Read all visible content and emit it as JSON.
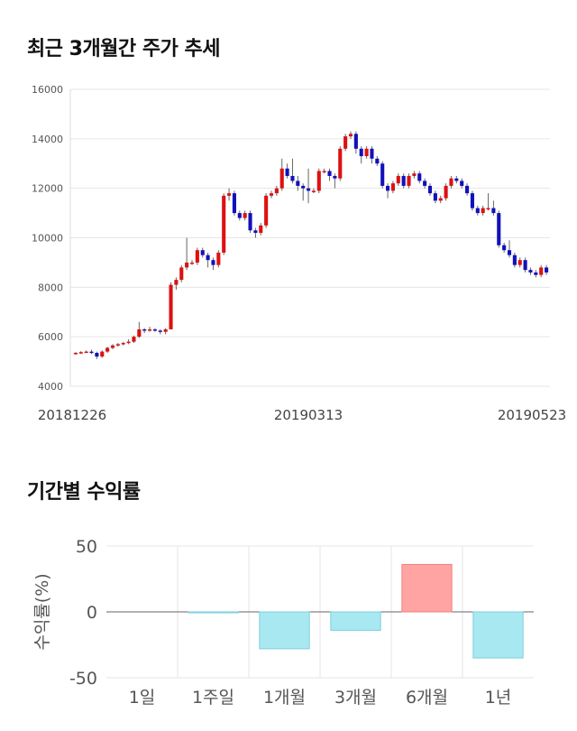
{
  "section1": {
    "title": "최근 3개월간 주가 추세"
  },
  "section2": {
    "title": "기간별 수익률"
  },
  "chart_data": [
    {
      "type": "candlestick",
      "yticks": [
        4000,
        6000,
        8000,
        10000,
        12000,
        14000,
        16000
      ],
      "ylim": [
        4000,
        16000
      ],
      "xtick_labels": [
        "20181226",
        "20190313",
        "20190523"
      ],
      "grid": true,
      "colors": {
        "up": "#dd1111",
        "down": "#1111bb",
        "wick": "#666666"
      },
      "candles": [
        [
          5300,
          5350,
          5380,
          5280
        ],
        [
          5350,
          5380,
          5420,
          5300
        ],
        [
          5380,
          5400,
          5450,
          5350
        ],
        [
          5400,
          5350,
          5480,
          5300
        ],
        [
          5350,
          5200,
          5400,
          5100
        ],
        [
          5200,
          5400,
          5450,
          5150
        ],
        [
          5400,
          5550,
          5600,
          5350
        ],
        [
          5550,
          5650,
          5700,
          5500
        ],
        [
          5650,
          5700,
          5750,
          5600
        ],
        [
          5700,
          5750,
          5800,
          5650
        ],
        [
          5750,
          5800,
          5900,
          5700
        ],
        [
          5800,
          6000,
          6050,
          5750
        ],
        [
          6000,
          6300,
          6600,
          5950
        ],
        [
          6300,
          6250,
          6350,
          6150
        ],
        [
          6250,
          6300,
          6400,
          6200
        ],
        [
          6300,
          6250,
          6350,
          6200
        ],
        [
          6250,
          6200,
          6300,
          6100
        ],
        [
          6200,
          6300,
          6350,
          6100
        ],
        [
          6300,
          8100,
          8200,
          6300
        ],
        [
          8100,
          8300,
          8400,
          7900
        ],
        [
          8300,
          8800,
          8900,
          8200
        ],
        [
          8800,
          9000,
          10000,
          8700
        ],
        [
          9000,
          9000,
          9100,
          8900
        ],
        [
          9000,
          9500,
          9600,
          8900
        ],
        [
          9500,
          9300,
          9600,
          9200
        ],
        [
          9300,
          9100,
          9400,
          8800
        ],
        [
          9100,
          8900,
          9200,
          8700
        ],
        [
          8900,
          9400,
          9500,
          8800
        ],
        [
          9400,
          11700,
          11800,
          9300
        ],
        [
          11700,
          11800,
          12000,
          11500
        ],
        [
          11800,
          11000,
          11900,
          10900
        ],
        [
          11000,
          10800,
          11100,
          10700
        ],
        [
          10800,
          11000,
          11100,
          10700
        ],
        [
          11000,
          10300,
          11100,
          10200
        ],
        [
          10300,
          10200,
          10400,
          10000
        ],
        [
          10200,
          10500,
          10600,
          10100
        ],
        [
          10500,
          11700,
          11800,
          10400
        ],
        [
          11700,
          11800,
          11900,
          11600
        ],
        [
          11800,
          12000,
          12100,
          11700
        ],
        [
          12000,
          12800,
          13200,
          11900
        ],
        [
          12800,
          12500,
          13000,
          12400
        ],
        [
          12500,
          12300,
          13200,
          12200
        ],
        [
          12300,
          12100,
          12500,
          11900
        ],
        [
          12100,
          12000,
          12200,
          11500
        ],
        [
          12000,
          11900,
          12800,
          11400
        ],
        [
          11900,
          11900,
          12000,
          11800
        ],
        [
          11900,
          12700,
          12800,
          11800
        ],
        [
          12700,
          12700,
          12800,
          12600
        ],
        [
          12700,
          12500,
          12800,
          12300
        ],
        [
          12500,
          12400,
          12600,
          12000
        ],
        [
          12400,
          13600,
          13700,
          12300
        ],
        [
          13600,
          14100,
          14200,
          13500
        ],
        [
          14100,
          14200,
          14300,
          14000
        ],
        [
          14200,
          13600,
          14300,
          13400
        ],
        [
          13600,
          13300,
          13700,
          13000
        ],
        [
          13300,
          13600,
          13700,
          13200
        ],
        [
          13600,
          13200,
          13700,
          13000
        ],
        [
          13200,
          13000,
          13300,
          12900
        ],
        [
          13000,
          12100,
          13100,
          12000
        ],
        [
          12100,
          11900,
          12200,
          11600
        ],
        [
          11900,
          12200,
          12300,
          11800
        ],
        [
          12200,
          12500,
          12600,
          12100
        ],
        [
          12500,
          12100,
          12600,
          12000
        ],
        [
          12100,
          12500,
          12600,
          12000
        ],
        [
          12500,
          12600,
          12700,
          12400
        ],
        [
          12600,
          12300,
          12700,
          12200
        ],
        [
          12300,
          12100,
          12400,
          12000
        ],
        [
          12100,
          11800,
          12200,
          11700
        ],
        [
          11800,
          11500,
          11900,
          11400
        ],
        [
          11500,
          11600,
          11700,
          11400
        ],
        [
          11600,
          12100,
          12200,
          11500
        ],
        [
          12100,
          12400,
          12500,
          12000
        ],
        [
          12400,
          12300,
          12500,
          12200
        ],
        [
          12300,
          12100,
          12400,
          12000
        ],
        [
          12100,
          11800,
          12200,
          11700
        ],
        [
          11800,
          11200,
          11900,
          11100
        ],
        [
          11200,
          11000,
          11300,
          10900
        ],
        [
          11000,
          11200,
          11300,
          10900
        ],
        [
          11200,
          11200,
          11800,
          11100
        ],
        [
          11200,
          11000,
          11500,
          10900
        ],
        [
          11000,
          9700,
          11100,
          9600
        ],
        [
          9700,
          9500,
          9800,
          9400
        ],
        [
          9500,
          9300,
          9900,
          9200
        ],
        [
          9300,
          8900,
          9400,
          8800
        ],
        [
          8900,
          9100,
          9200,
          8800
        ],
        [
          9100,
          8700,
          9200,
          8600
        ],
        [
          8700,
          8600,
          8800,
          8500
        ],
        [
          8600,
          8500,
          8700,
          8400
        ],
        [
          8500,
          8800,
          8900,
          8400
        ],
        [
          8800,
          8600,
          8900,
          8500
        ]
      ]
    },
    {
      "type": "bar",
      "ylabel": "수익률(%)",
      "ylim": [
        -50,
        50
      ],
      "yticks": [
        50,
        0,
        -50
      ],
      "categories": [
        "1일",
        "1주일",
        "1개월",
        "3개월",
        "6개월",
        "1년"
      ],
      "values": [
        0,
        -0.5,
        -28,
        -14,
        36,
        -35
      ],
      "colors": {
        "positive": "#ffa3a3",
        "negative": "#a8e8f0",
        "positive_edge": "#f08080",
        "negative_edge": "#7ccfe0"
      },
      "grid": true
    }
  ]
}
